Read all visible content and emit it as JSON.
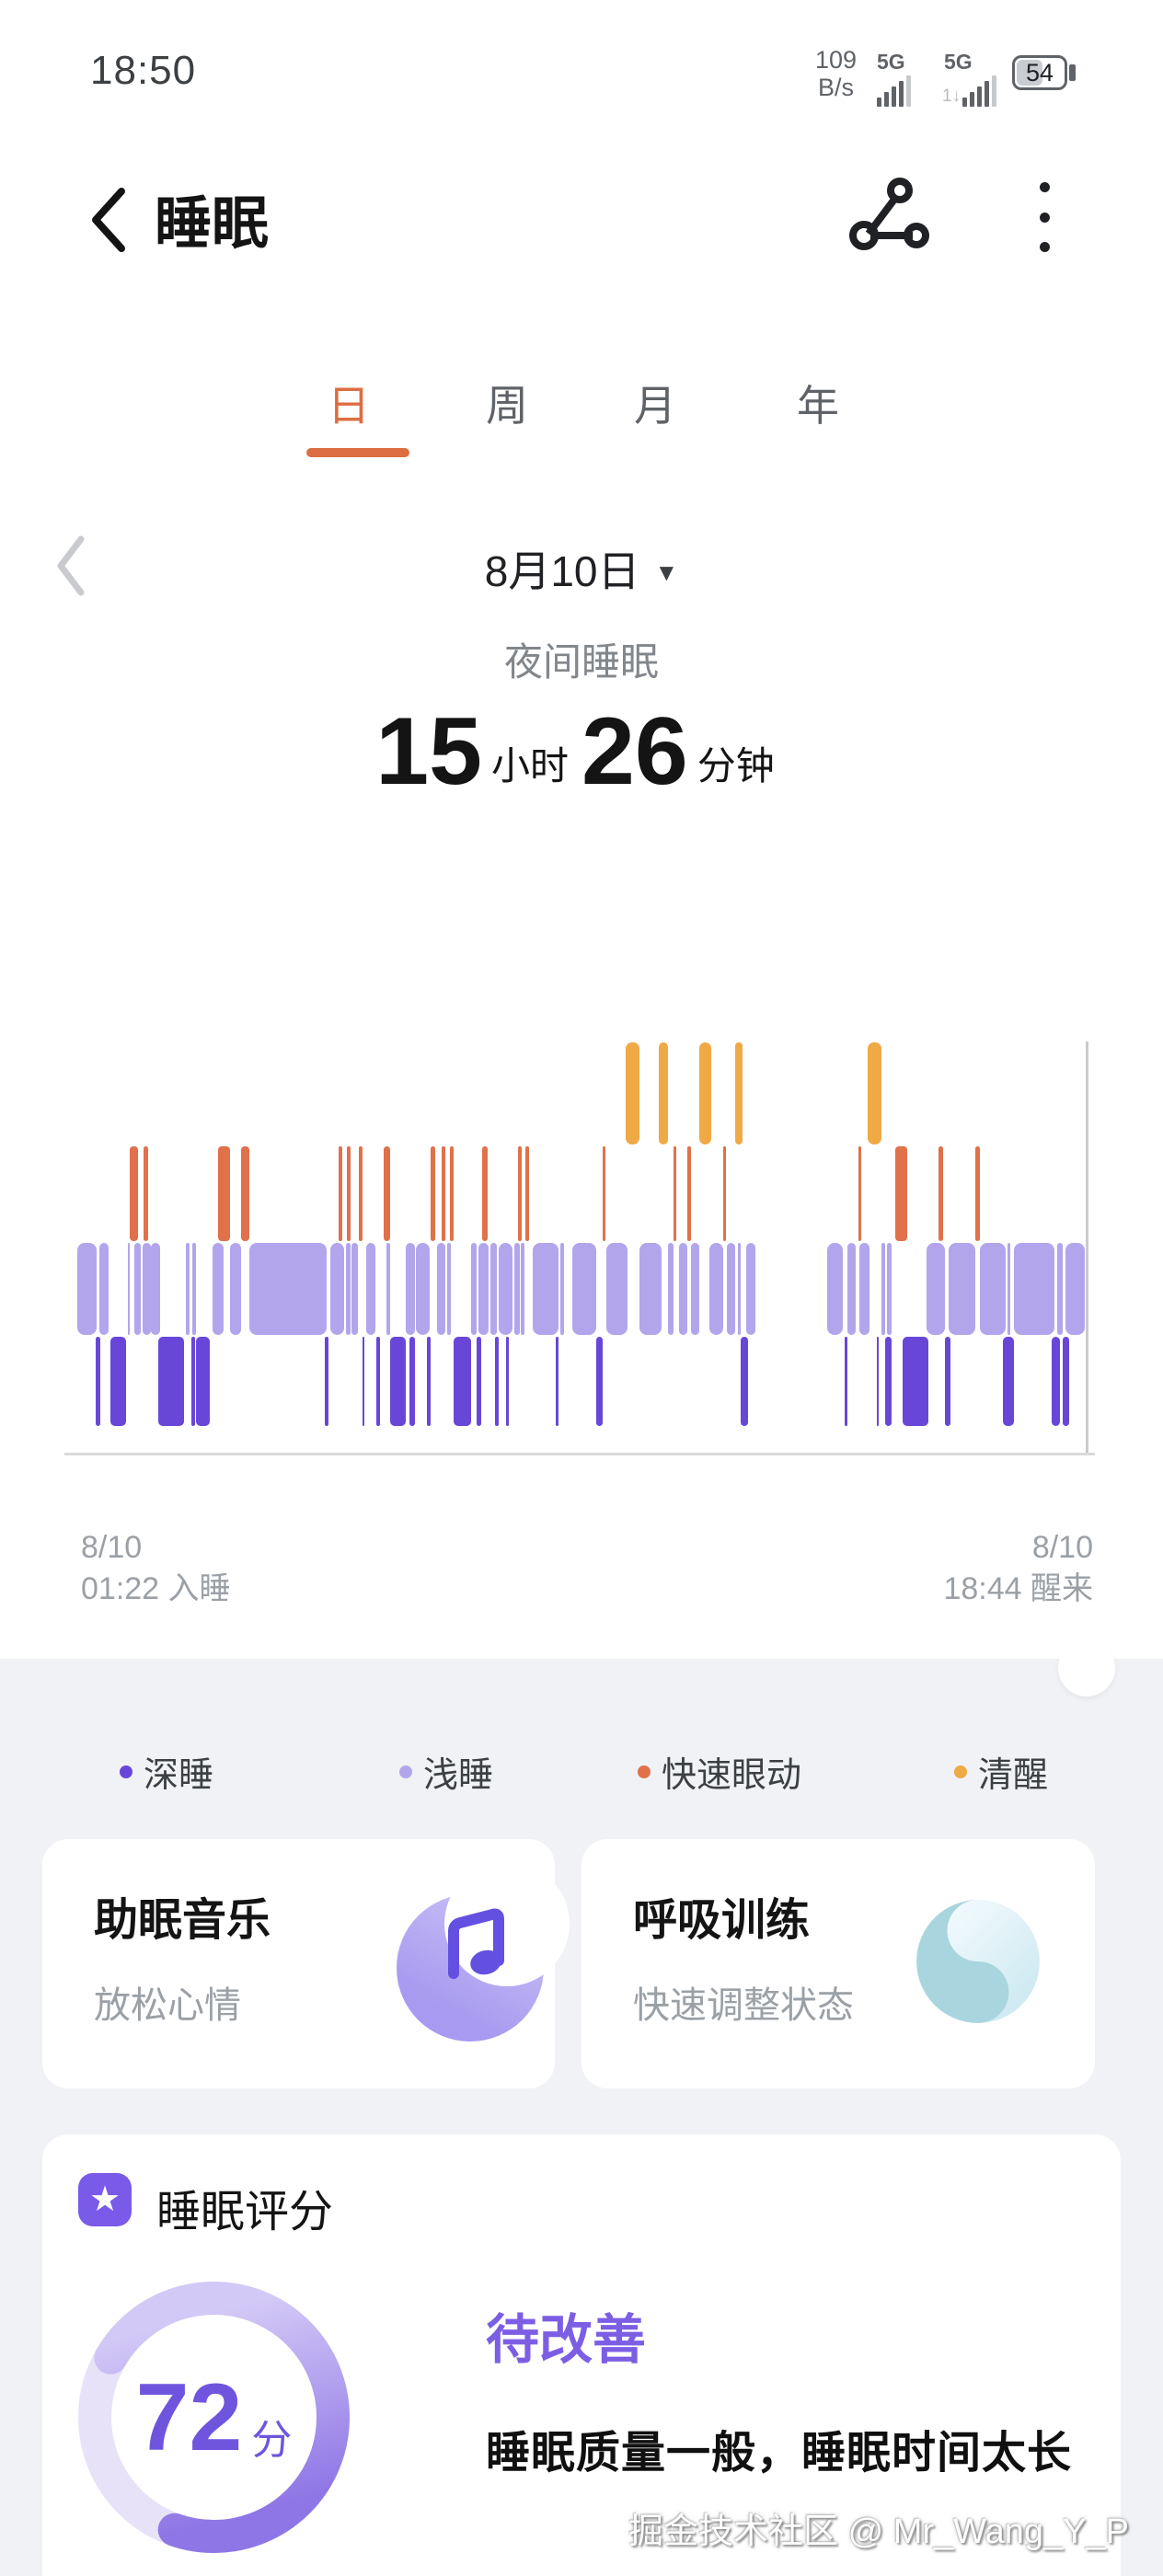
{
  "status_bar": {
    "time": "18:50",
    "net_speed_value": "109",
    "net_speed_unit": "B/s",
    "sim1_label": "5G",
    "sim2_label": "5G",
    "battery_level": "54",
    "battery_percent": 54
  },
  "header": {
    "title": "睡眠"
  },
  "tabs": {
    "items": [
      {
        "label": "日",
        "active": true
      },
      {
        "label": "周",
        "active": false
      },
      {
        "label": "月",
        "active": false
      },
      {
        "label": "年",
        "active": false
      }
    ]
  },
  "date_nav": {
    "date_label": "8月10日"
  },
  "summary": {
    "type_label": "夜间睡眠",
    "hours": "15",
    "hours_unit": "小时",
    "minutes": "26",
    "minutes_unit": "分钟"
  },
  "chart_labels": {
    "start_date": "8/10",
    "start_label": "01:22 入睡",
    "end_date": "8/10",
    "end_label": "18:44 醒来"
  },
  "legend": {
    "items": [
      {
        "label": "深睡",
        "color": "#6847d8",
        "stage": "deep"
      },
      {
        "label": "浅睡",
        "color": "#b3a5ec",
        "stage": "light"
      },
      {
        "label": "快速眼动",
        "color": "#e0714a",
        "stage": "rem"
      },
      {
        "label": "清醒",
        "color": "#efa945",
        "stage": "awake"
      }
    ]
  },
  "chart_data": {
    "type": "bar",
    "subtype": "sleep-hypnogram",
    "title": "夜间睡眠 15小时26分钟",
    "x_start": "8/10 01:22",
    "x_end": "8/10 18:44",
    "stages": [
      "awake",
      "rem",
      "light",
      "deep"
    ],
    "stage_colors": {
      "awake": "#efa945",
      "rem": "#e0714a",
      "light": "#b3a5ec",
      "deep": "#6847d8"
    },
    "segments": [
      [
        "light",
        1.9,
        3.8
      ],
      [
        "deep",
        3.7,
        4.1
      ],
      [
        "light",
        4.0,
        4.9
      ],
      [
        "deep",
        5.1,
        6.6
      ],
      [
        "light",
        6.8,
        7.0
      ],
      [
        "rem",
        7.0,
        7.8
      ],
      [
        "light",
        7.4,
        8.1
      ],
      [
        "rem",
        8.3,
        8.8
      ],
      [
        "light",
        8.2,
        9.0
      ],
      [
        "light",
        9.0,
        9.9
      ],
      [
        "deep",
        9.8,
        12.3
      ],
      [
        "light",
        12.4,
        12.8
      ],
      [
        "deep",
        13.0,
        13.3
      ],
      [
        "light",
        13.1,
        13.4
      ],
      [
        "deep",
        13.4,
        14.8
      ],
      [
        "light",
        15.0,
        16.1
      ],
      [
        "rem",
        15.6,
        16.7
      ],
      [
        "light",
        16.7,
        17.8
      ],
      [
        "rem",
        17.8,
        18.6
      ],
      [
        "light",
        18.6,
        26.1
      ],
      [
        "deep",
        26.0,
        26.3
      ],
      [
        "light",
        26.5,
        27.8
      ],
      [
        "rem",
        27.3,
        27.7
      ],
      [
        "light",
        28.0,
        28.5
      ],
      [
        "rem",
        28.1,
        28.5
      ],
      [
        "light",
        28.6,
        29.2
      ],
      [
        "rem",
        29.3,
        29.6
      ],
      [
        "deep",
        29.6,
        29.8
      ],
      [
        "light",
        30.0,
        30.9
      ],
      [
        "deep",
        31.0,
        31.3
      ],
      [
        "rem",
        31.7,
        32.3
      ],
      [
        "light",
        32.0,
        32.3
      ],
      [
        "deep",
        32.3,
        33.8
      ],
      [
        "light",
        33.8,
        34.7
      ],
      [
        "deep",
        34.2,
        34.7
      ],
      [
        "light",
        34.8,
        36.2
      ],
      [
        "deep",
        35.9,
        36.3
      ],
      [
        "rem",
        36.3,
        36.7
      ],
      [
        "light",
        36.9,
        37.7
      ],
      [
        "rem",
        37.3,
        37.7
      ],
      [
        "light",
        37.9,
        38.2
      ],
      [
        "rem",
        38.1,
        38.5
      ],
      [
        "deep",
        38.5,
        40.2
      ],
      [
        "light",
        40.2,
        40.7
      ],
      [
        "deep",
        40.7,
        41.2
      ],
      [
        "light",
        40.9,
        41.9
      ],
      [
        "rem",
        41.3,
        41.8
      ],
      [
        "light",
        42.1,
        42.7
      ],
      [
        "deep",
        42.5,
        42.9
      ],
      [
        "light",
        42.9,
        44.2
      ],
      [
        "deep",
        43.6,
        43.9
      ],
      [
        "light",
        44.4,
        44.9
      ],
      [
        "rem",
        44.8,
        45.1
      ],
      [
        "light",
        45.0,
        45.4
      ],
      [
        "rem",
        45.5,
        45.8
      ],
      [
        "light",
        46.2,
        48.7
      ],
      [
        "deep",
        48.4,
        48.7
      ],
      [
        "light",
        48.9,
        49.2
      ],
      [
        "light",
        50.0,
        52.4
      ],
      [
        "deep",
        52.4,
        53.0
      ],
      [
        "rem",
        53.0,
        53.3
      ],
      [
        "light",
        53.4,
        55.4
      ],
      [
        "awake",
        55.2,
        56.6
      ],
      [
        "light",
        56.6,
        58.7
      ],
      [
        "awake",
        58.5,
        59.4
      ],
      [
        "light",
        59.4,
        59.9
      ],
      [
        "rem",
        59.9,
        60.2
      ],
      [
        "light",
        60.4,
        61.2
      ],
      [
        "rem",
        61.2,
        61.6
      ],
      [
        "light",
        61.6,
        62.4
      ],
      [
        "awake",
        62.4,
        63.6
      ],
      [
        "light",
        63.4,
        64.7
      ],
      [
        "rem",
        64.7,
        65.0
      ],
      [
        "light",
        65.1,
        65.9
      ],
      [
        "awake",
        65.9,
        66.6
      ],
      [
        "light",
        66.2,
        66.4
      ],
      [
        "deep",
        66.4,
        67.1
      ],
      [
        "light",
        67.0,
        67.9
      ],
      [
        "light",
        74.8,
        76.4
      ],
      [
        "deep",
        76.5,
        76.8
      ],
      [
        "light",
        76.8,
        77.6
      ],
      [
        "rem",
        77.9,
        78.2
      ],
      [
        "light",
        78.0,
        79.0
      ],
      [
        "awake",
        78.8,
        80.1
      ],
      [
        "deep",
        79.7,
        79.9
      ],
      [
        "light",
        80.1,
        80.5
      ],
      [
        "deep",
        80.5,
        81.1
      ],
      [
        "light",
        80.7,
        81.1
      ],
      [
        "rem",
        81.5,
        82.6
      ],
      [
        "deep",
        82.2,
        84.7
      ],
      [
        "light",
        84.5,
        86.3
      ],
      [
        "rem",
        85.7,
        86.1
      ],
      [
        "deep",
        86.3,
        86.8
      ],
      [
        "light",
        86.7,
        89.3
      ],
      [
        "rem",
        89.3,
        89.7
      ],
      [
        "light",
        89.7,
        92.2
      ],
      [
        "deep",
        91.9,
        93.0
      ],
      [
        "light",
        92.4,
        92.7
      ],
      [
        "light",
        93.0,
        97.0
      ],
      [
        "deep",
        96.7,
        97.5
      ],
      [
        "light",
        97.2,
        97.8
      ],
      [
        "deep",
        97.8,
        98.4
      ],
      [
        "light",
        98.0,
        99.9
      ]
    ]
  },
  "cards": [
    {
      "title": "助眠音乐",
      "subtitle": "放松心情",
      "icon": "music-moon"
    },
    {
      "title": "呼吸训练",
      "subtitle": "快速调整状态",
      "icon": "breath-swirl"
    }
  ],
  "score_card": {
    "title": "睡眠评分",
    "score": "72",
    "score_unit": "分",
    "percent": 72,
    "rating": "待改善",
    "description": "睡眠质量一般，睡眠时间太长",
    "ring_track_color": "#e7e2f8",
    "ring_grad_start": "#d3c9f6",
    "ring_grad_end": "#8f76e6"
  },
  "watermark": "掘金技术社区 @ Mr_Wang_Y_P"
}
